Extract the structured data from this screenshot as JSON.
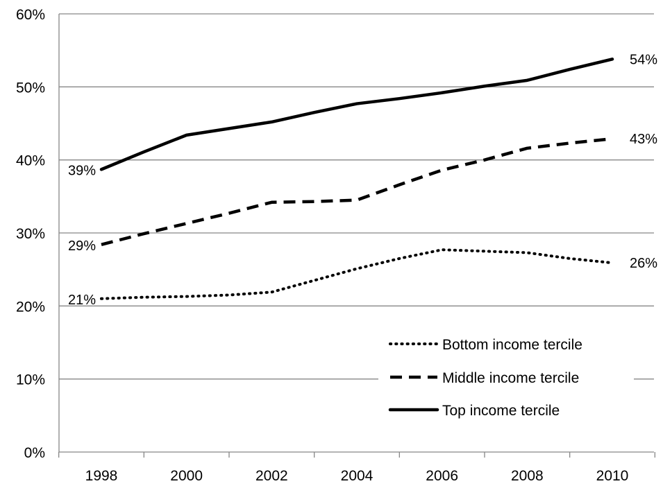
{
  "chart_data": {
    "type": "line",
    "x": [
      "1998",
      "2000",
      "2002",
      "2004",
      "2006",
      "2008",
      "2010"
    ],
    "x_values": [
      1998,
      1999,
      2000,
      2001,
      2002,
      2003,
      2004,
      2005,
      2006,
      2007,
      2008,
      2009,
      2010
    ],
    "ylim": [
      0,
      60
    ],
    "yticks": [
      "0%",
      "10%",
      "20%",
      "30%",
      "40%",
      "50%",
      "60%"
    ],
    "grid": true,
    "legend_position": "bottom-right",
    "series": [
      {
        "name": "Bottom income tercile",
        "style": "dotted",
        "values": [
          21.0,
          21.2,
          21.3,
          21.5,
          21.9,
          23.5,
          25.1,
          26.5,
          27.7,
          27.5,
          27.3,
          26.5,
          25.9
        ],
        "start_label": "21%",
        "end_label": "26%"
      },
      {
        "name": "Middle income tercile",
        "style": "dashed",
        "values": [
          28.4,
          29.9,
          31.3,
          32.7,
          34.2,
          34.3,
          34.5,
          36.6,
          38.6,
          40.0,
          41.6,
          42.3,
          42.9
        ],
        "start_label": "29%",
        "end_label": "43%"
      },
      {
        "name": "Top income tercile",
        "style": "solid",
        "values": [
          38.7,
          41.1,
          43.4,
          44.3,
          45.2,
          46.5,
          47.7,
          48.4,
          49.2,
          50.1,
          50.9,
          52.4,
          53.8
        ],
        "start_label": "39%",
        "end_label": "54%"
      }
    ],
    "colors": {
      "line": "#000000",
      "grid": "#868686",
      "axis": "#868686"
    }
  }
}
